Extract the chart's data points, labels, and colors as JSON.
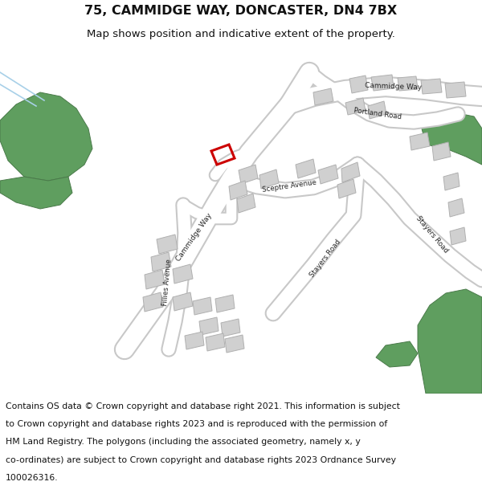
{
  "title_line1": "75, CAMMIDGE WAY, DONCASTER, DN4 7BX",
  "title_line2": "Map shows position and indicative extent of the property.",
  "copyright_lines": [
    "Contains OS data © Crown copyright and database right 2021. This information is subject",
    "to Crown copyright and database rights 2023 and is reproduced with the permission of",
    "HM Land Registry. The polygons (including the associated geometry, namely x, y",
    "co-ordinates) are subject to Crown copyright and database rights 2023 Ordnance Survey",
    "100026316."
  ],
  "bg_color": "#ffffff",
  "map_bg": "#f2f2f2",
  "road_color": "#ffffff",
  "road_outline": "#c8c8c8",
  "building_color": "#d0d0d0",
  "building_outline": "#b0b0b0",
  "green_color": "#5f9e5f",
  "highlight_color": "#cc0000",
  "title_fontsize": 11.5,
  "subtitle_fontsize": 9.5,
  "copyright_fontsize": 7.8
}
